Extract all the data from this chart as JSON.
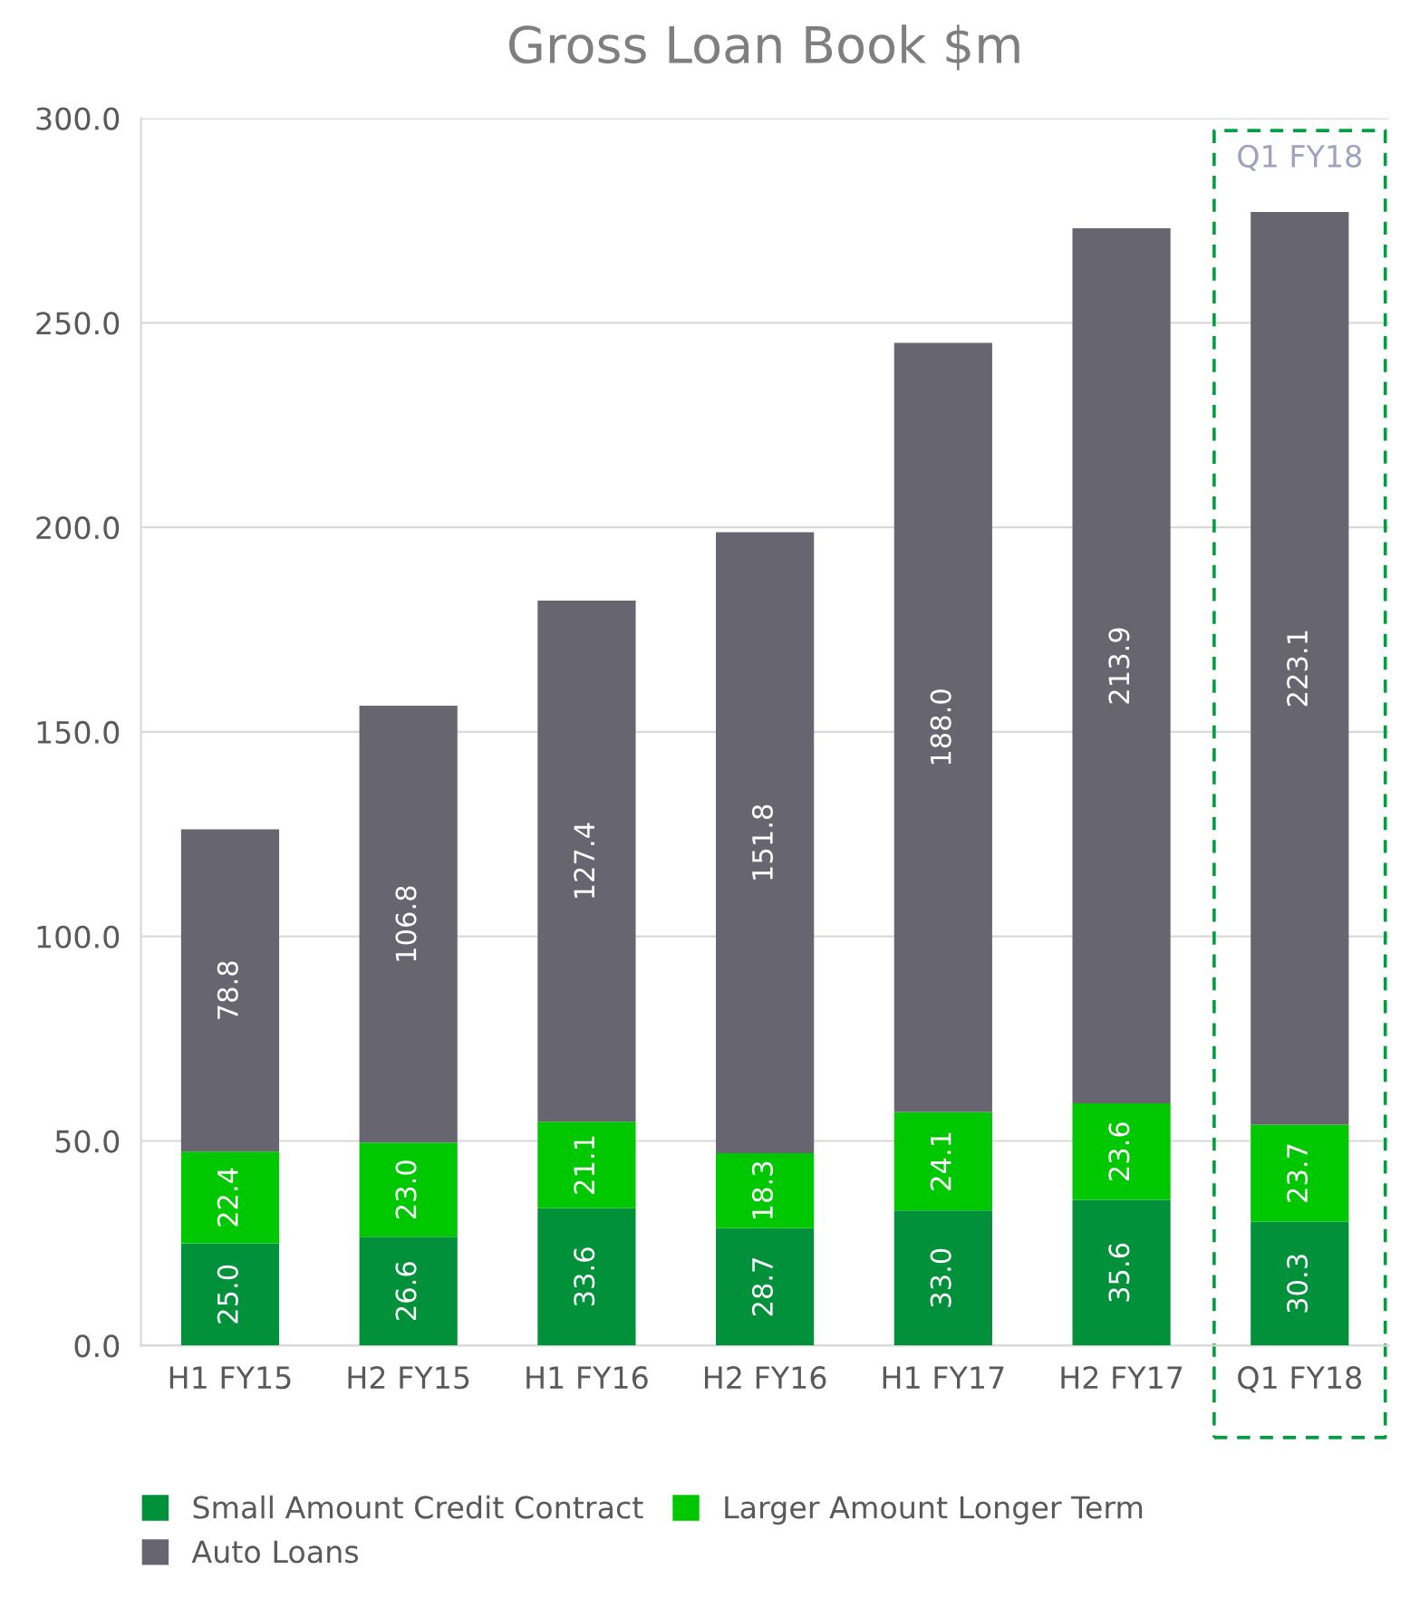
{
  "chart_data": {
    "type": "bar",
    "title": "Gross Loan Book $m",
    "stacked": true,
    "categories": [
      "H1 FY15",
      "H2 FY15",
      "H1 FY16",
      "H2 FY16",
      "H1 FY17",
      "H2 FY17",
      "Q1 FY18"
    ],
    "series": [
      {
        "name": "Small Amount Credit Contract",
        "color": "#00913a",
        "values": [
          25.0,
          26.6,
          33.6,
          28.7,
          33.0,
          35.6,
          30.3
        ],
        "value_labels": [
          "25.0",
          "26.6",
          "33.6",
          "28.7",
          "33.0",
          "35.6",
          "30.3"
        ]
      },
      {
        "name": "Larger Amount Longer Term",
        "color": "#00c800",
        "values": [
          22.4,
          23.0,
          21.1,
          18.3,
          24.1,
          23.6,
          23.7
        ],
        "value_labels": [
          "22.4",
          "23.0",
          "21.1",
          "18.3",
          "24.1",
          "23.6",
          "23.7"
        ]
      },
      {
        "name": "Auto Loans",
        "color": "#67656f",
        "values": [
          78.8,
          106.8,
          127.4,
          151.8,
          188.0,
          213.9,
          223.1
        ],
        "value_labels": [
          "78.8",
          "106.8",
          "127.4",
          "151.8",
          "188.0",
          "213.9",
          "223.1"
        ]
      }
    ],
    "ylim": [
      0,
      300
    ],
    "yticks": [
      {
        "value": 0,
        "label": "0.0"
      },
      {
        "value": 50,
        "label": "50.0"
      },
      {
        "value": 100,
        "label": "100.0"
      },
      {
        "value": 150,
        "label": "150.0"
      },
      {
        "value": 200,
        "label": "200.0"
      },
      {
        "value": 250,
        "label": "250.0"
      },
      {
        "value": 300,
        "label": "300.0"
      }
    ],
    "grid": "y",
    "legend": "bottom",
    "annotations": [
      "Q1 FY18"
    ]
  }
}
